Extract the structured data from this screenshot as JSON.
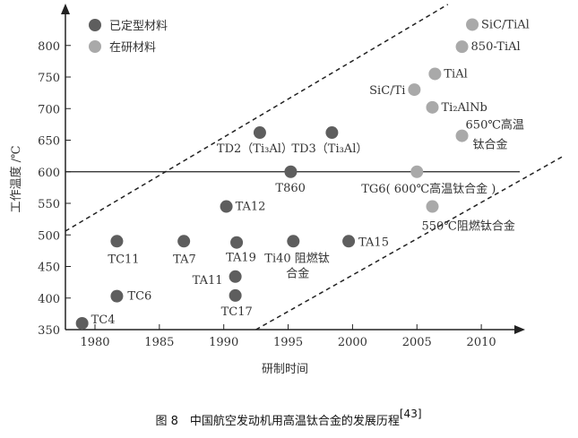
{
  "chart_data": {
    "type": "scatter",
    "caption": "图 8　中国航空发动机用高温钛合金的发展历程",
    "caption_ref": "[43]",
    "xlabel": "研制时间",
    "ylabel": "工作温度 /℃",
    "xlim": [
      1977.5,
      2013
    ],
    "ylim": [
      350,
      870
    ],
    "xticks": [
      1980,
      1985,
      1990,
      1995,
      2000,
      2005,
      2010
    ],
    "yticks": [
      350,
      400,
      450,
      500,
      550,
      600,
      650,
      700,
      750,
      800
    ],
    "reference_line_y": 600,
    "legend": {
      "position": "top-left",
      "items": [
        {
          "label": "已定型材料",
          "color": "#5e5e5e"
        },
        {
          "label": "在研材料",
          "color": "#a9a9a9"
        }
      ]
    },
    "series": [
      {
        "name": "已定型材料",
        "color": "#5e5e5e",
        "points": [
          {
            "label": "TC4",
            "x": 1979.0,
            "y": 360
          },
          {
            "label": "TC6",
            "x": 1981.7,
            "y": 403
          },
          {
            "label": "TC11",
            "x": 1981.7,
            "y": 490
          },
          {
            "label": "TA7",
            "x": 1986.9,
            "y": 490
          },
          {
            "label": "TA19",
            "x": 1991.0,
            "y": 488
          },
          {
            "label": "TA11",
            "x": 1990.9,
            "y": 434
          },
          {
            "label": "TC17",
            "x": 1990.9,
            "y": 404
          },
          {
            "label": "TA12",
            "x": 1990.2,
            "y": 545
          },
          {
            "label": "T860",
            "x": 1995.2,
            "y": 600
          },
          {
            "label": "TD2（Ti₃Al）",
            "x": 1992.8,
            "y": 662
          },
          {
            "label": "TD3（Ti₃Al）",
            "x": 1998.4,
            "y": 662
          },
          {
            "label": "Ti40 阻燃钛合金",
            "x": 1995.4,
            "y": 490
          },
          {
            "label": "TA15",
            "x": 1999.7,
            "y": 490
          }
        ]
      },
      {
        "name": "在研材料",
        "color": "#a9a9a9",
        "points": [
          {
            "label": "TG6( 600℃高温钛合金 )",
            "x": 2005.0,
            "y": 600
          },
          {
            "label": "550℃阻燃钛合金",
            "x": 2006.2,
            "y": 545
          },
          {
            "label": "650℃高温钛合金",
            "x": 2008.5,
            "y": 657
          },
          {
            "label": "Ti₂AlNb",
            "x": 2006.2,
            "y": 702
          },
          {
            "label": "SiC/Ti",
            "x": 2004.8,
            "y": 730
          },
          {
            "label": "TiAl",
            "x": 2006.4,
            "y": 755
          },
          {
            "label": "850-TiAl",
            "x": 2008.5,
            "y": 798
          },
          {
            "label": "SiC/TiAl",
            "x": 2009.3,
            "y": 833
          }
        ]
      }
    ],
    "dashed_lines": [
      {
        "from": [
          1977.7,
          506
        ],
        "to": [
          2007.4,
          865
        ]
      },
      {
        "from": [
          1992.5,
          350
        ],
        "to": [
          2016.3,
          624
        ]
      }
    ]
  }
}
